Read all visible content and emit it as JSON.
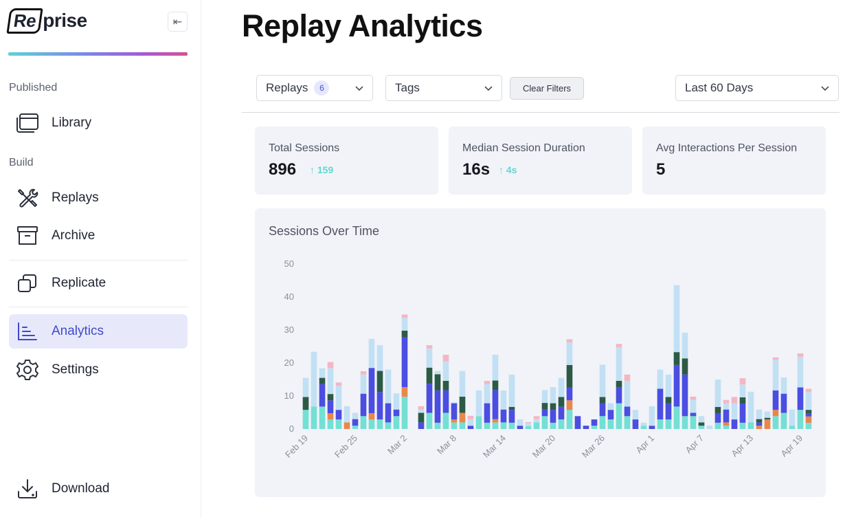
{
  "logo": {
    "boxed": "Re",
    "rest": "prise"
  },
  "sidebar": {
    "collapse_icon_glyph": "⇤",
    "section_published": "Published",
    "section_build": "Build",
    "items": [
      {
        "label": "Library",
        "icon": "library-icon"
      },
      {
        "label": "Replays",
        "icon": "tools-icon"
      },
      {
        "label": "Archive",
        "icon": "archive-icon"
      },
      {
        "label": "Replicate",
        "icon": "replicate-icon"
      },
      {
        "label": "Analytics",
        "icon": "analytics-icon",
        "active": true
      },
      {
        "label": "Settings",
        "icon": "gear-icon"
      },
      {
        "label": "Download",
        "icon": "download-icon"
      }
    ]
  },
  "page": {
    "title": "Replay Analytics"
  },
  "filters": {
    "replays_label": "Replays",
    "replays_count": "6",
    "tags_label": "Tags",
    "clear_label": "Clear Filters",
    "range_label": "Last 60 Days"
  },
  "stats": [
    {
      "label": "Total Sessions",
      "value": "896",
      "delta": "↑ 159"
    },
    {
      "label": "Median Session Duration",
      "value": "16s",
      "delta": "↑ 4s"
    },
    {
      "label": "Avg Interactions Per Session",
      "value": "5"
    }
  ],
  "colors": {
    "accent": "#3f49c8",
    "series": [
      "#74dfd4",
      "#e8884a",
      "#4b4ee0",
      "#2d5a45",
      "#c2e0f4",
      "#f5b6c3"
    ]
  },
  "chart_data": {
    "type": "bar",
    "stacked": true,
    "title": "Sessions Over Time",
    "ylim": [
      0,
      50
    ],
    "yticks": [
      0,
      10,
      20,
      30,
      40,
      50
    ],
    "xtick_labels": [
      "Feb 19",
      "Feb 25",
      "Mar 2",
      "Mar 8",
      "Mar 14",
      "Mar 20",
      "Mar 26",
      "Apr 1",
      "Apr 7",
      "Apr 13",
      "Apr 19"
    ],
    "xtick_every": 6,
    "series_names": [
      "s1",
      "s2",
      "s3",
      "s4",
      "s5",
      "s6"
    ],
    "days": [
      [
        5.8,
        0,
        0,
        3.9,
        5.8,
        0
      ],
      [
        6.8,
        0,
        0,
        0,
        16.6,
        0
      ],
      [
        6.8,
        0,
        6.8,
        1.9,
        2.9,
        0
      ],
      [
        2.9,
        1.9,
        3.9,
        1.9,
        7.8,
        1.9
      ],
      [
        2.9,
        0,
        2.9,
        0,
        7.3,
        1.0
      ],
      [
        0,
        2.0,
        0,
        0,
        4.9,
        0
      ],
      [
        1.0,
        0,
        2.0,
        0,
        1.9,
        0
      ],
      [
        3.9,
        0,
        6.8,
        0,
        5.8,
        1.0
      ],
      [
        2.9,
        1.9,
        13.7,
        0,
        8.8,
        0
      ],
      [
        2.9,
        0,
        8.3,
        6.4,
        7.8,
        0
      ],
      [
        2.0,
        0,
        5.8,
        0,
        10.2,
        0
      ],
      [
        3.9,
        0,
        2.0,
        0,
        4.9,
        0
      ],
      [
        9.8,
        2.9,
        15.1,
        2.0,
        3.9,
        1.0
      ],
      [
        0,
        0,
        0,
        0,
        0,
        0
      ],
      [
        0,
        0,
        2.0,
        2.9,
        1.0,
        1.0
      ],
      [
        4.9,
        0,
        8.8,
        4.9,
        5.8,
        1.0
      ],
      [
        1.9,
        0,
        9.8,
        4.9,
        1.0,
        0
      ],
      [
        4.9,
        0,
        6.8,
        2.9,
        5.9,
        2.0
      ],
      [
        2.0,
        0.9,
        4.9,
        0,
        0.3,
        0
      ],
      [
        2.0,
        2.9,
        0,
        4.9,
        7.8,
        0
      ],
      [
        0,
        0,
        1.0,
        0,
        2.0,
        1.0
      ],
      [
        3.9,
        0,
        0,
        0,
        7.8,
        0
      ],
      [
        1.9,
        0,
        5.9,
        0,
        5.8,
        1.0
      ],
      [
        2.0,
        1.0,
        8.8,
        2.9,
        7.8,
        0
      ],
      [
        2.0,
        0,
        3.9,
        0,
        5.8,
        0
      ],
      [
        1.9,
        0,
        3.9,
        0.9,
        9.8,
        0
      ],
      [
        0,
        0,
        1.0,
        0,
        1.9,
        0
      ],
      [
        0.9,
        0,
        0,
        0,
        0.9,
        0.3
      ],
      [
        2.0,
        0,
        0,
        0,
        1.0,
        0.9
      ],
      [
        3.9,
        0,
        2.0,
        2.0,
        3.9,
        0
      ],
      [
        1.9,
        0,
        3.9,
        2.0,
        4.9,
        0
      ],
      [
        2.9,
        0,
        3.9,
        2.9,
        5.8,
        0
      ],
      [
        5.8,
        2.9,
        3.9,
        6.8,
        6.8,
        1.0
      ],
      [
        0,
        0,
        3.9,
        0,
        0,
        0
      ],
      [
        0,
        0,
        1.0,
        0,
        0,
        0
      ],
      [
        1.0,
        0,
        1.9,
        0,
        0,
        0
      ],
      [
        3.9,
        0,
        3.9,
        1.9,
        9.8,
        0
      ],
      [
        2.9,
        0,
        2.9,
        0,
        2.0,
        0
      ],
      [
        7.8,
        0,
        4.9,
        1.9,
        10.2,
        1.0
      ],
      [
        3.9,
        0,
        2.9,
        0,
        7.8,
        1.9
      ],
      [
        0,
        0,
        2.9,
        0,
        2.9,
        0
      ],
      [
        1.0,
        0,
        0,
        0,
        0.9,
        0
      ],
      [
        0,
        0,
        1.0,
        0,
        5.9,
        0
      ],
      [
        2.9,
        0,
        9.3,
        0,
        5.8,
        0
      ],
      [
        2.9,
        0,
        4.9,
        1.9,
        6.8,
        0
      ],
      [
        6.8,
        0,
        12.6,
        3.9,
        20.3,
        0
      ],
      [
        3.9,
        0,
        12.6,
        4.9,
        7.8,
        0
      ],
      [
        3.9,
        0,
        1.0,
        0,
        3.9,
        1.0
      ],
      [
        1.0,
        0,
        0,
        1.0,
        1.9,
        0
      ],
      [
        0,
        0,
        0,
        0,
        1.0,
        0
      ],
      [
        1.9,
        0,
        2.9,
        1.9,
        8.3,
        0
      ],
      [
        1.0,
        1.0,
        3.9,
        0,
        1.9,
        1.0
      ],
      [
        0,
        0,
        2.9,
        0,
        4.9,
        1.9
      ],
      [
        1.9,
        0,
        5.8,
        1.9,
        3.9,
        1.9
      ],
      [
        2.0,
        0,
        0,
        0,
        9.3,
        0
      ],
      [
        0,
        1.0,
        1.0,
        1.0,
        2.9,
        0
      ],
      [
        0,
        2.9,
        0,
        0.5,
        1.9,
        0
      ],
      [
        3.9,
        1.9,
        5.9,
        0,
        9.3,
        0.7
      ],
      [
        4.9,
        0,
        5.8,
        0,
        4.9,
        0
      ],
      [
        1.0,
        0,
        0,
        0,
        4.9,
        0
      ],
      [
        5.8,
        0,
        6.8,
        0,
        9.3,
        1.0
      ],
      [
        1.9,
        1.9,
        1.0,
        1.0,
        5.4,
        1.0
      ]
    ]
  }
}
